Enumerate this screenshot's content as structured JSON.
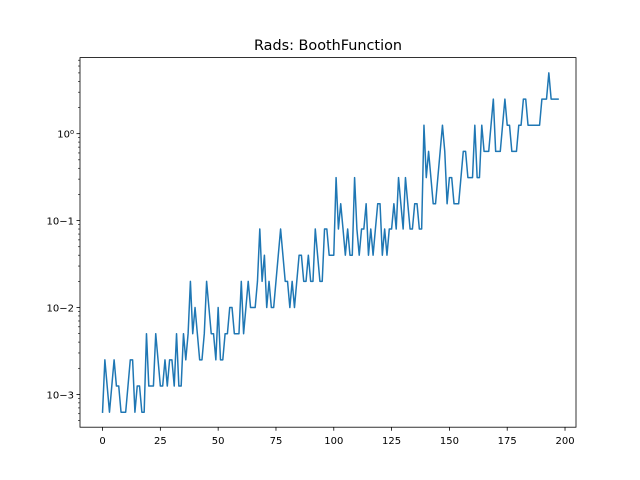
{
  "chart_data": {
    "type": "line",
    "title": "Rads: BoothFunction",
    "xlabel": "",
    "ylabel": "",
    "yscale": "log",
    "xlim": [
      -9.75,
      204.75
    ],
    "ylim": [
      0.00042,
      7.5
    ],
    "grid": false,
    "legend": "none",
    "x_ticks": [
      0,
      25,
      50,
      75,
      100,
      125,
      150,
      175,
      200
    ],
    "x_tick_labels": [
      "0",
      "25",
      "50",
      "75",
      "100",
      "125",
      "150",
      "175",
      "200"
    ],
    "y_ticks": [
      0.001,
      0.01,
      0.1,
      1
    ],
    "y_tick_labels": [
      "10−3",
      "10−2",
      "10−1",
      "10⁰"
    ],
    "series": [
      {
        "color": "#1f77b4",
        "x_start": 0,
        "x_step": 1,
        "y": [
          0.000625,
          0.0025,
          0.00125,
          0.000625,
          0.00125,
          0.0025,
          0.00125,
          0.00125,
          0.000625,
          0.000625,
          0.000625,
          0.00125,
          0.0025,
          0.0025,
          0.000625,
          0.00125,
          0.00125,
          0.000625,
          0.000625,
          0.005,
          0.00125,
          0.00125,
          0.00125,
          0.005,
          0.0025,
          0.00125,
          0.00125,
          0.0025,
          0.00125,
          0.0025,
          0.0025,
          0.00125,
          0.005,
          0.00125,
          0.00125,
          0.005,
          0.0025,
          0.005,
          0.02,
          0.005,
          0.01,
          0.005,
          0.0025,
          0.0025,
          0.005,
          0.02,
          0.01,
          0.005,
          0.005,
          0.0025,
          0.01,
          0.0025,
          0.0025,
          0.005,
          0.005,
          0.01,
          0.01,
          0.005,
          0.005,
          0.005,
          0.02,
          0.005,
          0.01,
          0.02,
          0.01,
          0.01,
          0.01,
          0.02,
          0.08,
          0.02,
          0.04,
          0.01,
          0.02,
          0.01,
          0.01,
          0.02,
          0.04,
          0.08,
          0.04,
          0.02,
          0.02,
          0.01,
          0.02,
          0.01,
          0.02,
          0.04,
          0.04,
          0.02,
          0.02,
          0.04,
          0.02,
          0.02,
          0.08,
          0.04,
          0.02,
          0.02,
          0.08,
          0.08,
          0.04,
          0.04,
          0.04,
          0.3125,
          0.08,
          0.15625,
          0.08,
          0.04,
          0.08,
          0.04,
          0.04,
          0.3125,
          0.08,
          0.04,
          0.08,
          0.08,
          0.15625,
          0.04,
          0.08,
          0.04,
          0.08,
          0.15625,
          0.15625,
          0.04,
          0.08,
          0.04,
          0.08,
          0.08,
          0.15625,
          0.08,
          0.3125,
          0.15625,
          0.08,
          0.3125,
          0.15625,
          0.08,
          0.08,
          0.15625,
          0.15625,
          0.08,
          0.08,
          1.25,
          0.3125,
          0.625,
          0.3125,
          0.15625,
          0.15625,
          0.3125,
          0.625,
          1.25,
          0.625,
          0.15625,
          0.3125,
          0.3125,
          0.15625,
          0.15625,
          0.15625,
          0.3125,
          0.625,
          0.625,
          0.3125,
          0.3125,
          0.3125,
          1.25,
          0.3125,
          0.3125,
          1.25,
          0.625,
          0.625,
          0.625,
          1.25,
          2.5,
          0.625,
          0.625,
          0.625,
          1.25,
          2.5,
          1.25,
          1.25,
          0.625,
          0.625,
          0.625,
          1.25,
          1.25,
          2.5,
          2.5,
          1.25,
          1.25,
          1.25,
          1.25,
          1.25,
          1.25,
          2.5,
          2.5,
          2.5,
          5.0,
          2.5,
          2.5,
          2.5,
          2.5
        ]
      }
    ]
  }
}
